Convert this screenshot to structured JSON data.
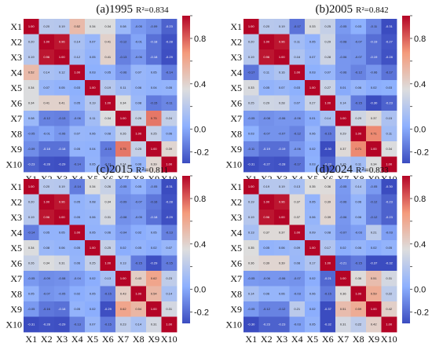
{
  "chart_data": [
    {
      "type": "heatmap",
      "title": "(a)1995",
      "r2_label": "R²=0.834",
      "labels": [
        "X1",
        "X2",
        "X3",
        "X4",
        "X5",
        "X6",
        "X7",
        "X8",
        "X9",
        "X10"
      ],
      "colorbar": {
        "range": [
          -0.3,
          1.0
        ],
        "ticks": [
          -0.2,
          0.0,
          0.2,
          0.4,
          0.6,
          0.8,
          1.0
        ]
      },
      "colormap": "coolwarm",
      "matrix": [
        [
          1.0,
          0.2,
          0.19,
          0.52,
          0.34,
          0.34,
          0.08,
          -0.05,
          -0.09,
          -0.23
        ],
        [
          0.2,
          1.0,
          0.96,
          0.14,
          0.07,
          0.41,
          -0.12,
          -0.01,
          -0.18,
          -0.28
        ],
        [
          0.19,
          0.96,
          1.0,
          0.12,
          0.05,
          0.41,
          -0.13,
          -0.06,
          -0.18,
          -0.29
        ],
        [
          0.52,
          0.14,
          0.12,
          1.0,
          0.03,
          0.05,
          -0.06,
          0.07,
          0.05,
          -0.14
        ],
        [
          0.34,
          0.07,
          0.05,
          0.03,
          1.0,
          0.19,
          0.11,
          0.06,
          0.04,
          0.05
        ],
        [
          0.34,
          0.41,
          0.41,
          0.05,
          0.19,
          1.0,
          0.34,
          0.08,
          -0.15,
          -0.11
        ],
        [
          0.08,
          -0.12,
          -0.13,
          -0.06,
          0.11,
          0.34,
          1.0,
          0.26,
          0.75,
          0.24
        ],
        [
          -0.05,
          -0.01,
          -0.06,
          0.07,
          0.06,
          0.08,
          0.26,
          1.0,
          0.25,
          0.06
        ],
        [
          -0.09,
          -0.18,
          -0.18,
          0.05,
          0.04,
          -0.15,
          0.75,
          0.25,
          1.0,
          0.39
        ],
        [
          -0.23,
          -0.28,
          -0.29,
          -0.14,
          0.05,
          -0.11,
          0.24,
          0.06,
          0.39,
          1.0
        ]
      ]
    },
    {
      "type": "heatmap",
      "title": "(b)2005",
      "r2_label": "R²=0.842",
      "labels": [
        "X1",
        "X2",
        "X3",
        "X4",
        "X5",
        "X6",
        "X7",
        "X8",
        "X9",
        "X10"
      ],
      "colorbar": {
        "range": [
          -0.3,
          1.0
        ],
        "ticks": [
          -0.2,
          0.0,
          0.2,
          0.4,
          0.6,
          0.8,
          1.0
        ]
      },
      "colormap": "coolwarm",
      "matrix": [
        [
          1.0,
          0.2,
          0.19,
          -0.17,
          0.33,
          0.25,
          -0.05,
          0.03,
          -0.11,
          -0.31
        ],
        [
          0.2,
          1.0,
          0.96,
          0.11,
          0.05,
          0.29,
          -0.08,
          -0.07,
          -0.19,
          -0.27
        ],
        [
          0.19,
          0.96,
          1.0,
          0.16,
          0.07,
          0.28,
          -0.06,
          -0.07,
          -0.19,
          -0.28
        ],
        [
          -0.17,
          0.11,
          0.16,
          1.0,
          0.03,
          0.07,
          -0.06,
          -0.12,
          -0.06,
          -0.17
        ],
        [
          0.33,
          0.05,
          0.07,
          0.03,
          1.0,
          0.27,
          0.01,
          0.06,
          0.02,
          0.03
        ],
        [
          0.25,
          0.29,
          0.28,
          0.07,
          0.27,
          1.0,
          0.14,
          -0.15,
          -0.3,
          -0.23
        ],
        [
          -0.05,
          -0.08,
          -0.06,
          -0.06,
          0.01,
          0.14,
          1.0,
          0.29,
          0.37,
          0.15
        ],
        [
          0.03,
          -0.07,
          -0.07,
          -0.12,
          0.06,
          -0.15,
          0.29,
          1.0,
          0.71,
          0.11
        ],
        [
          -0.11,
          -0.19,
          -0.19,
          -0.06,
          0.02,
          -0.3,
          0.37,
          0.71,
          1.0,
          0.34
        ],
        [
          -0.31,
          -0.27,
          -0.28,
          -0.17,
          0.03,
          -0.23,
          0.15,
          0.11,
          0.34,
          1.0
        ]
      ]
    },
    {
      "type": "heatmap",
      "title": "(c)2015",
      "r2_label": "R²=0.811",
      "labels": [
        "X1",
        "X2",
        "X3",
        "X4",
        "X5",
        "X6",
        "X7",
        "X8",
        "X9",
        "X10"
      ],
      "colorbar": {
        "range": [
          -0.3,
          1.0
        ],
        "ticks": [
          -0.2,
          0.0,
          0.2,
          0.4,
          0.6,
          0.8,
          1.0
        ]
      },
      "colormap": "coolwarm",
      "matrix": [
        [
          1.0,
          0.2,
          0.19,
          -0.14,
          0.34,
          0.26,
          -0.05,
          0.05,
          -0.05,
          -0.31
        ],
        [
          0.2,
          1.0,
          0.96,
          0.05,
          0.08,
          0.34,
          -0.09,
          -0.07,
          -0.16,
          -0.28
        ],
        [
          0.19,
          0.96,
          1.0,
          0.05,
          0.06,
          0.31,
          -0.08,
          -0.05,
          -0.18,
          -0.29
        ],
        [
          -0.14,
          0.05,
          0.05,
          1.0,
          0.05,
          0.06,
          -0.04,
          0.02,
          0.05,
          -0.13
        ],
        [
          0.34,
          0.08,
          0.06,
          0.05,
          1.0,
          0.25,
          0.02,
          0.05,
          0.02,
          0.07
        ],
        [
          0.26,
          0.34,
          0.31,
          0.06,
          0.25,
          1.0,
          0.13,
          -0.15,
          -0.29,
          -0.15
        ],
        [
          -0.05,
          -0.09,
          -0.08,
          -0.04,
          0.02,
          0.13,
          1.0,
          0.43,
          0.62,
          0.23
        ],
        [
          0.05,
          -0.07,
          -0.05,
          0.02,
          0.05,
          -0.15,
          0.43,
          1.0,
          0.54,
          0.14
        ],
        [
          -0.05,
          -0.16,
          -0.18,
          0.05,
          0.02,
          -0.29,
          0.62,
          0.54,
          1.0,
          0.31
        ],
        [
          -0.31,
          -0.28,
          -0.29,
          -0.13,
          0.07,
          -0.15,
          0.23,
          0.14,
          0.31,
          1.0
        ]
      ]
    },
    {
      "type": "heatmap",
      "title": "(d)2024",
      "r2_label": "R²=0.833",
      "labels": [
        "X1",
        "X2",
        "X3",
        "X4",
        "X5",
        "X6",
        "X7",
        "X8",
        "X9",
        "X10"
      ],
      "colorbar": {
        "range": [
          -0.3,
          1.0
        ],
        "ticks": [
          -0.2,
          0.0,
          0.2,
          0.4,
          0.6,
          0.8,
          1.0
        ]
      },
      "colormap": "coolwarm",
      "matrix": [
        [
          1.0,
          0.19,
          0.19,
          0.13,
          0.35,
          0.36,
          -0.05,
          0.14,
          -0.05,
          -0.3
        ],
        [
          0.19,
          1.0,
          0.96,
          0.37,
          0.05,
          0.39,
          -0.06,
          0.06,
          -0.12,
          -0.23
        ],
        [
          0.19,
          0.96,
          1.0,
          0.37,
          0.06,
          0.39,
          -0.06,
          0.06,
          -0.12,
          -0.23
        ],
        [
          0.13,
          0.37,
          0.37,
          1.0,
          0.09,
          0.08,
          -0.07,
          -0.03,
          0.21,
          -0.03
        ],
        [
          0.35,
          0.05,
          0.06,
          0.09,
          1.0,
          0.17,
          0.02,
          0.06,
          0.02,
          0.05
        ],
        [
          0.36,
          0.39,
          0.39,
          0.08,
          0.17,
          1.0,
          -0.21,
          -0.15,
          -0.37,
          -0.32
        ],
        [
          -0.05,
          -0.06,
          -0.06,
          -0.07,
          0.02,
          -0.21,
          1.0,
          0.36,
          0.51,
          0.31
        ],
        [
          0.14,
          0.06,
          0.06,
          -0.03,
          0.06,
          -0.15,
          0.36,
          1.0,
          0.59,
          0.22
        ],
        [
          -0.05,
          -0.12,
          -0.12,
          0.21,
          0.02,
          -0.37,
          0.51,
          0.59,
          1.0,
          0.42
        ],
        [
          -0.3,
          -0.23,
          -0.23,
          -0.03,
          0.05,
          -0.32,
          0.31,
          0.22,
          0.42,
          1.0
        ]
      ]
    }
  ]
}
